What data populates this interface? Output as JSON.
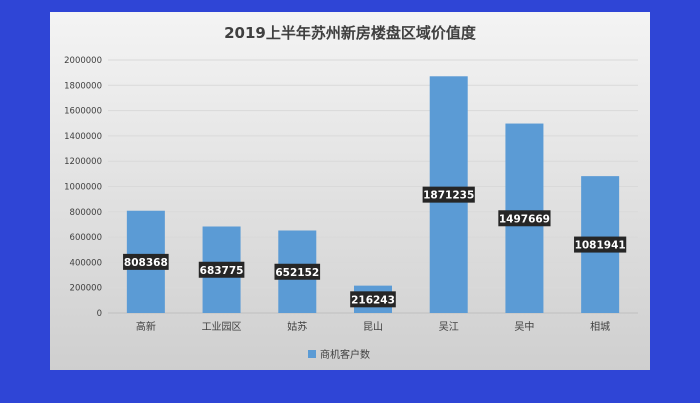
{
  "chart_data": {
    "type": "bar",
    "title": "2019上半年苏州新房楼盘区域价值度",
    "categories": [
      "高新",
      "工业园区",
      "姑苏",
      "昆山",
      "吴江",
      "吴中",
      "相城"
    ],
    "series": [
      {
        "name": "商机客户数",
        "values": [
          808368,
          683775,
          652152,
          216243,
          1871235,
          1497669,
          1081941
        ]
      }
    ],
    "ylim": [
      0,
      2000000
    ],
    "yticks": [
      0,
      200000,
      400000,
      600000,
      800000,
      1000000,
      1200000,
      1400000,
      1600000,
      1800000,
      2000000
    ],
    "grid": true,
    "legend": "bottom",
    "colors": {
      "bar": "#5b9bd5",
      "label_bg": "#262626",
      "grid": "#d9d9d9",
      "panel_top": "#f4f4f4",
      "panel_bottom": "#cfcfcf",
      "page_bg": "#2f45d6"
    }
  }
}
